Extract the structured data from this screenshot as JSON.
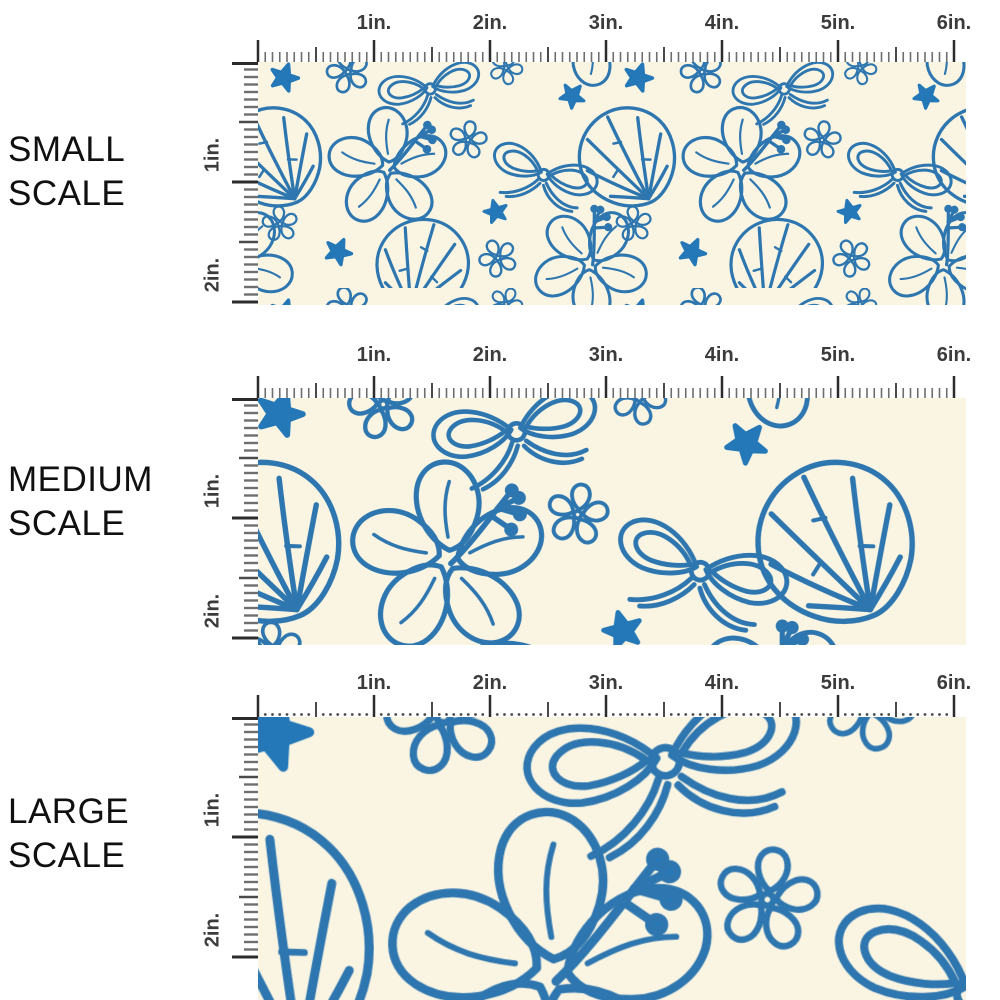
{
  "colors": {
    "page_background": "#ffffff",
    "fabric_background": "#FAF5E3",
    "pattern_blue": "#2E76AF",
    "starfish_blue": "#2478B8",
    "ruler_major": "#2b2b2b",
    "ruler_medium": "#4a4a4a",
    "ruler_minor": "#6e6e6e",
    "ruler_label": "#3b3b3b",
    "scale_label": "#101010"
  },
  "rulers": {
    "horizontal_unit_labels": [
      "1in.",
      "2in.",
      "3in.",
      "4in.",
      "5in.",
      "6in."
    ],
    "vertical_unit_labels": [
      "1in.",
      "2in."
    ]
  },
  "panels": [
    {
      "name": "small-scale",
      "label_line1": "SMALL",
      "label_line2": "SCALE"
    },
    {
      "name": "medium-scale",
      "label_line1": "MEDIUM",
      "label_line2": "SCALE"
    },
    {
      "name": "large-scale",
      "label_line1": "LARGE",
      "label_line2": "SCALE"
    }
  ],
  "pattern": {
    "motifs": [
      "seashell",
      "hibiscus-flower",
      "plumeria-flower",
      "ribbon-bow",
      "starfish"
    ]
  }
}
